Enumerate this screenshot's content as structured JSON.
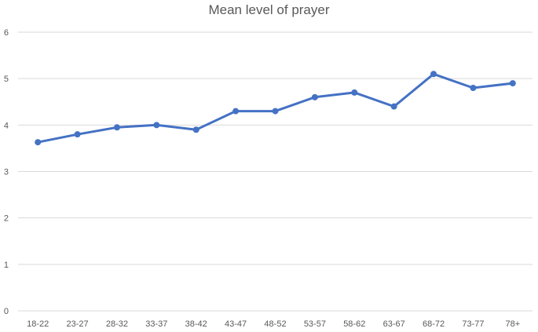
{
  "chart_data": {
    "type": "line",
    "title": "Mean level of prayer",
    "xlabel": "",
    "ylabel": "",
    "categories": [
      "18-22",
      "23-27",
      "28-32",
      "33-37",
      "38-42",
      "43-47",
      "48-52",
      "53-57",
      "58-62",
      "63-67",
      "68-72",
      "73-77",
      "78+"
    ],
    "series": [
      {
        "values": [
          3.63,
          3.8,
          3.95,
          4.0,
          3.9,
          4.3,
          4.3,
          4.6,
          4.7,
          4.4,
          5.1,
          4.8,
          4.9
        ],
        "color": "#4472C4"
      }
    ],
    "ylim": [
      0,
      6
    ],
    "yticks": [
      0,
      1,
      2,
      3,
      4,
      5,
      6
    ],
    "grid": true,
    "legend": "none"
  }
}
